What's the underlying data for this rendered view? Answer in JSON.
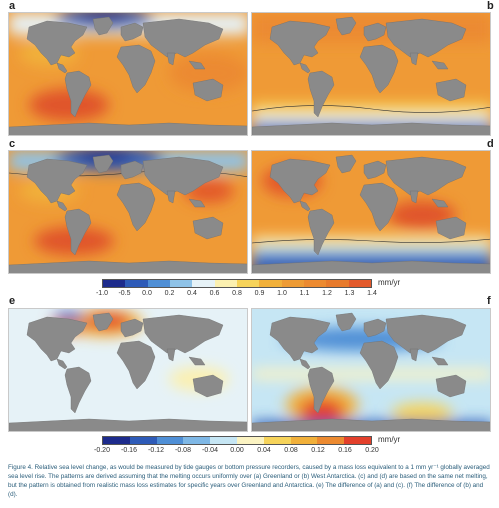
{
  "panels": {
    "a": {
      "label": "a"
    },
    "b": {
      "label": "b"
    },
    "c": {
      "label": "c"
    },
    "d": {
      "label": "d"
    },
    "e": {
      "label": "e"
    },
    "f": {
      "label": "f"
    }
  },
  "colorbar_top": {
    "unit": "mm/yr",
    "ticks": [
      "-1.0",
      "-0.5",
      "0.0",
      "0.2",
      "0.4",
      "0.6",
      "0.8",
      "0.9",
      "1.0",
      "1.1",
      "1.2",
      "1.3",
      "1.4"
    ],
    "colors": [
      "#1d2b8c",
      "#2e5bb8",
      "#4f8fd6",
      "#8fc3e8",
      "#e6f2f7",
      "#fbf0b0",
      "#f6d35a",
      "#f1b03a",
      "#ee9b34",
      "#ec8a30",
      "#e77a2c",
      "#e35a2c"
    ]
  },
  "colorbar_bottom": {
    "unit": "mm/yr",
    "ticks": [
      "-0.20",
      "-0.16",
      "-0.12",
      "-0.08",
      "-0.04",
      "0.00",
      "0.04",
      "0.08",
      "0.12",
      "0.16",
      "0.20"
    ],
    "colors": [
      "#1d2b8c",
      "#2e5bb8",
      "#4f8fd6",
      "#7fb8e6",
      "#c6e6f4",
      "#fbf3c2",
      "#f6d35a",
      "#f1b03a",
      "#ec8a30",
      "#e3402b"
    ]
  },
  "caption": "Figure 4. Relative sea level change, as would be measured by tide gauges or bottom pressure recorders, caused by a mass loss equivalent to a 1 mm yr⁻¹ globally averaged sea level rise. The patterns are derived assuming that the melting occurs uniformly over (a) Greenland or (b) West Antarctica. (c) and (d) are based on the same net melting, but the pattern is obtained from realistic mass loss estimates for specific years over Greenland and Antarctica. (e) The difference of (a) and (c). (f) The difference of (b) and (d).",
  "legend_colors": {
    "land": "#8a8a8a",
    "ocean_base": "#ef9a36"
  }
}
